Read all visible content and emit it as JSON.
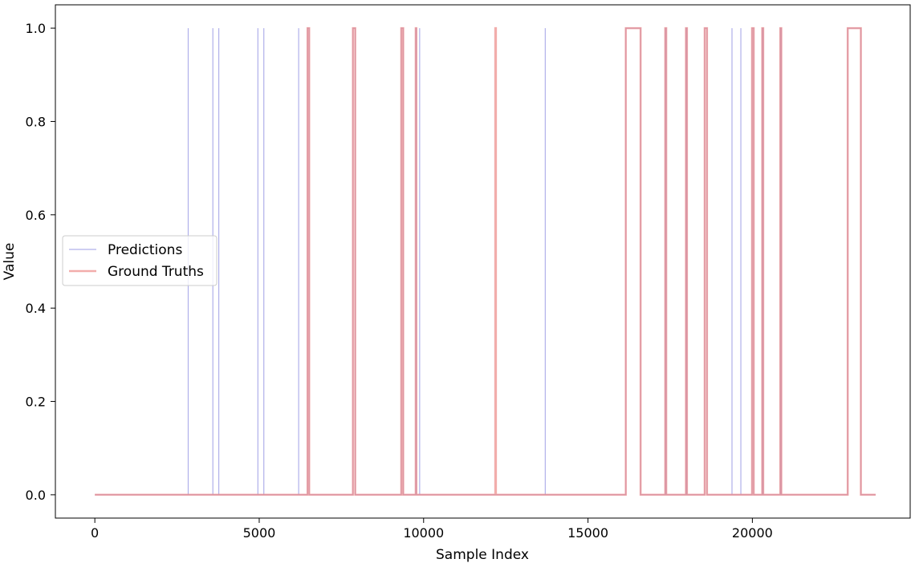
{
  "chart_data": {
    "type": "line",
    "title": "",
    "xlabel": "Sample Index",
    "ylabel": "Value",
    "xlim": [
      -1200,
      24800
    ],
    "ylim": [
      -0.05,
      1.05
    ],
    "x_ticks": [
      0,
      5000,
      10000,
      15000,
      20000
    ],
    "x_tick_labels": [
      "0",
      "5000",
      "10000",
      "15000",
      "20000"
    ],
    "y_ticks": [
      0.0,
      0.2,
      0.4,
      0.6,
      0.8,
      1.0
    ],
    "y_tick_labels": [
      "0.0",
      "0.2",
      "0.4",
      "0.6",
      "0.8",
      "1.0"
    ],
    "grid": false,
    "legend_position": "center-left",
    "x_end": 23750,
    "series": [
      {
        "name": "Predictions",
        "color": "#7b7bdc",
        "alpha": 0.6,
        "linewidth": 1.2,
        "pulses": [
          [
            2840,
            2840
          ],
          [
            3590,
            3590
          ],
          [
            3770,
            3770
          ],
          [
            4960,
            4960
          ],
          [
            5140,
            5140
          ],
          [
            6200,
            6200
          ],
          [
            6470,
            6520
          ],
          [
            7850,
            7920
          ],
          [
            9320,
            9380
          ],
          [
            9760,
            9780
          ],
          [
            9880,
            9880
          ],
          [
            13700,
            13700
          ],
          [
            16150,
            16600
          ],
          [
            17350,
            17380
          ],
          [
            17980,
            18010
          ],
          [
            18550,
            18620
          ],
          [
            19380,
            19380
          ],
          [
            19650,
            19650
          ],
          [
            19990,
            20040
          ],
          [
            20300,
            20330
          ],
          [
            20850,
            20880
          ],
          [
            22900,
            23300
          ]
        ]
      },
      {
        "name": "Ground Truths",
        "color": "#ec8a88",
        "alpha": 0.7,
        "linewidth": 2.5,
        "pulses": [
          [
            6470,
            6520
          ],
          [
            7850,
            7920
          ],
          [
            9320,
            9380
          ],
          [
            9760,
            9780
          ],
          [
            12180,
            12200
          ],
          [
            16150,
            16600
          ],
          [
            17350,
            17380
          ],
          [
            17980,
            18010
          ],
          [
            18550,
            18620
          ],
          [
            19990,
            20040
          ],
          [
            20300,
            20330
          ],
          [
            20850,
            20880
          ],
          [
            22900,
            23300
          ]
        ]
      }
    ]
  }
}
